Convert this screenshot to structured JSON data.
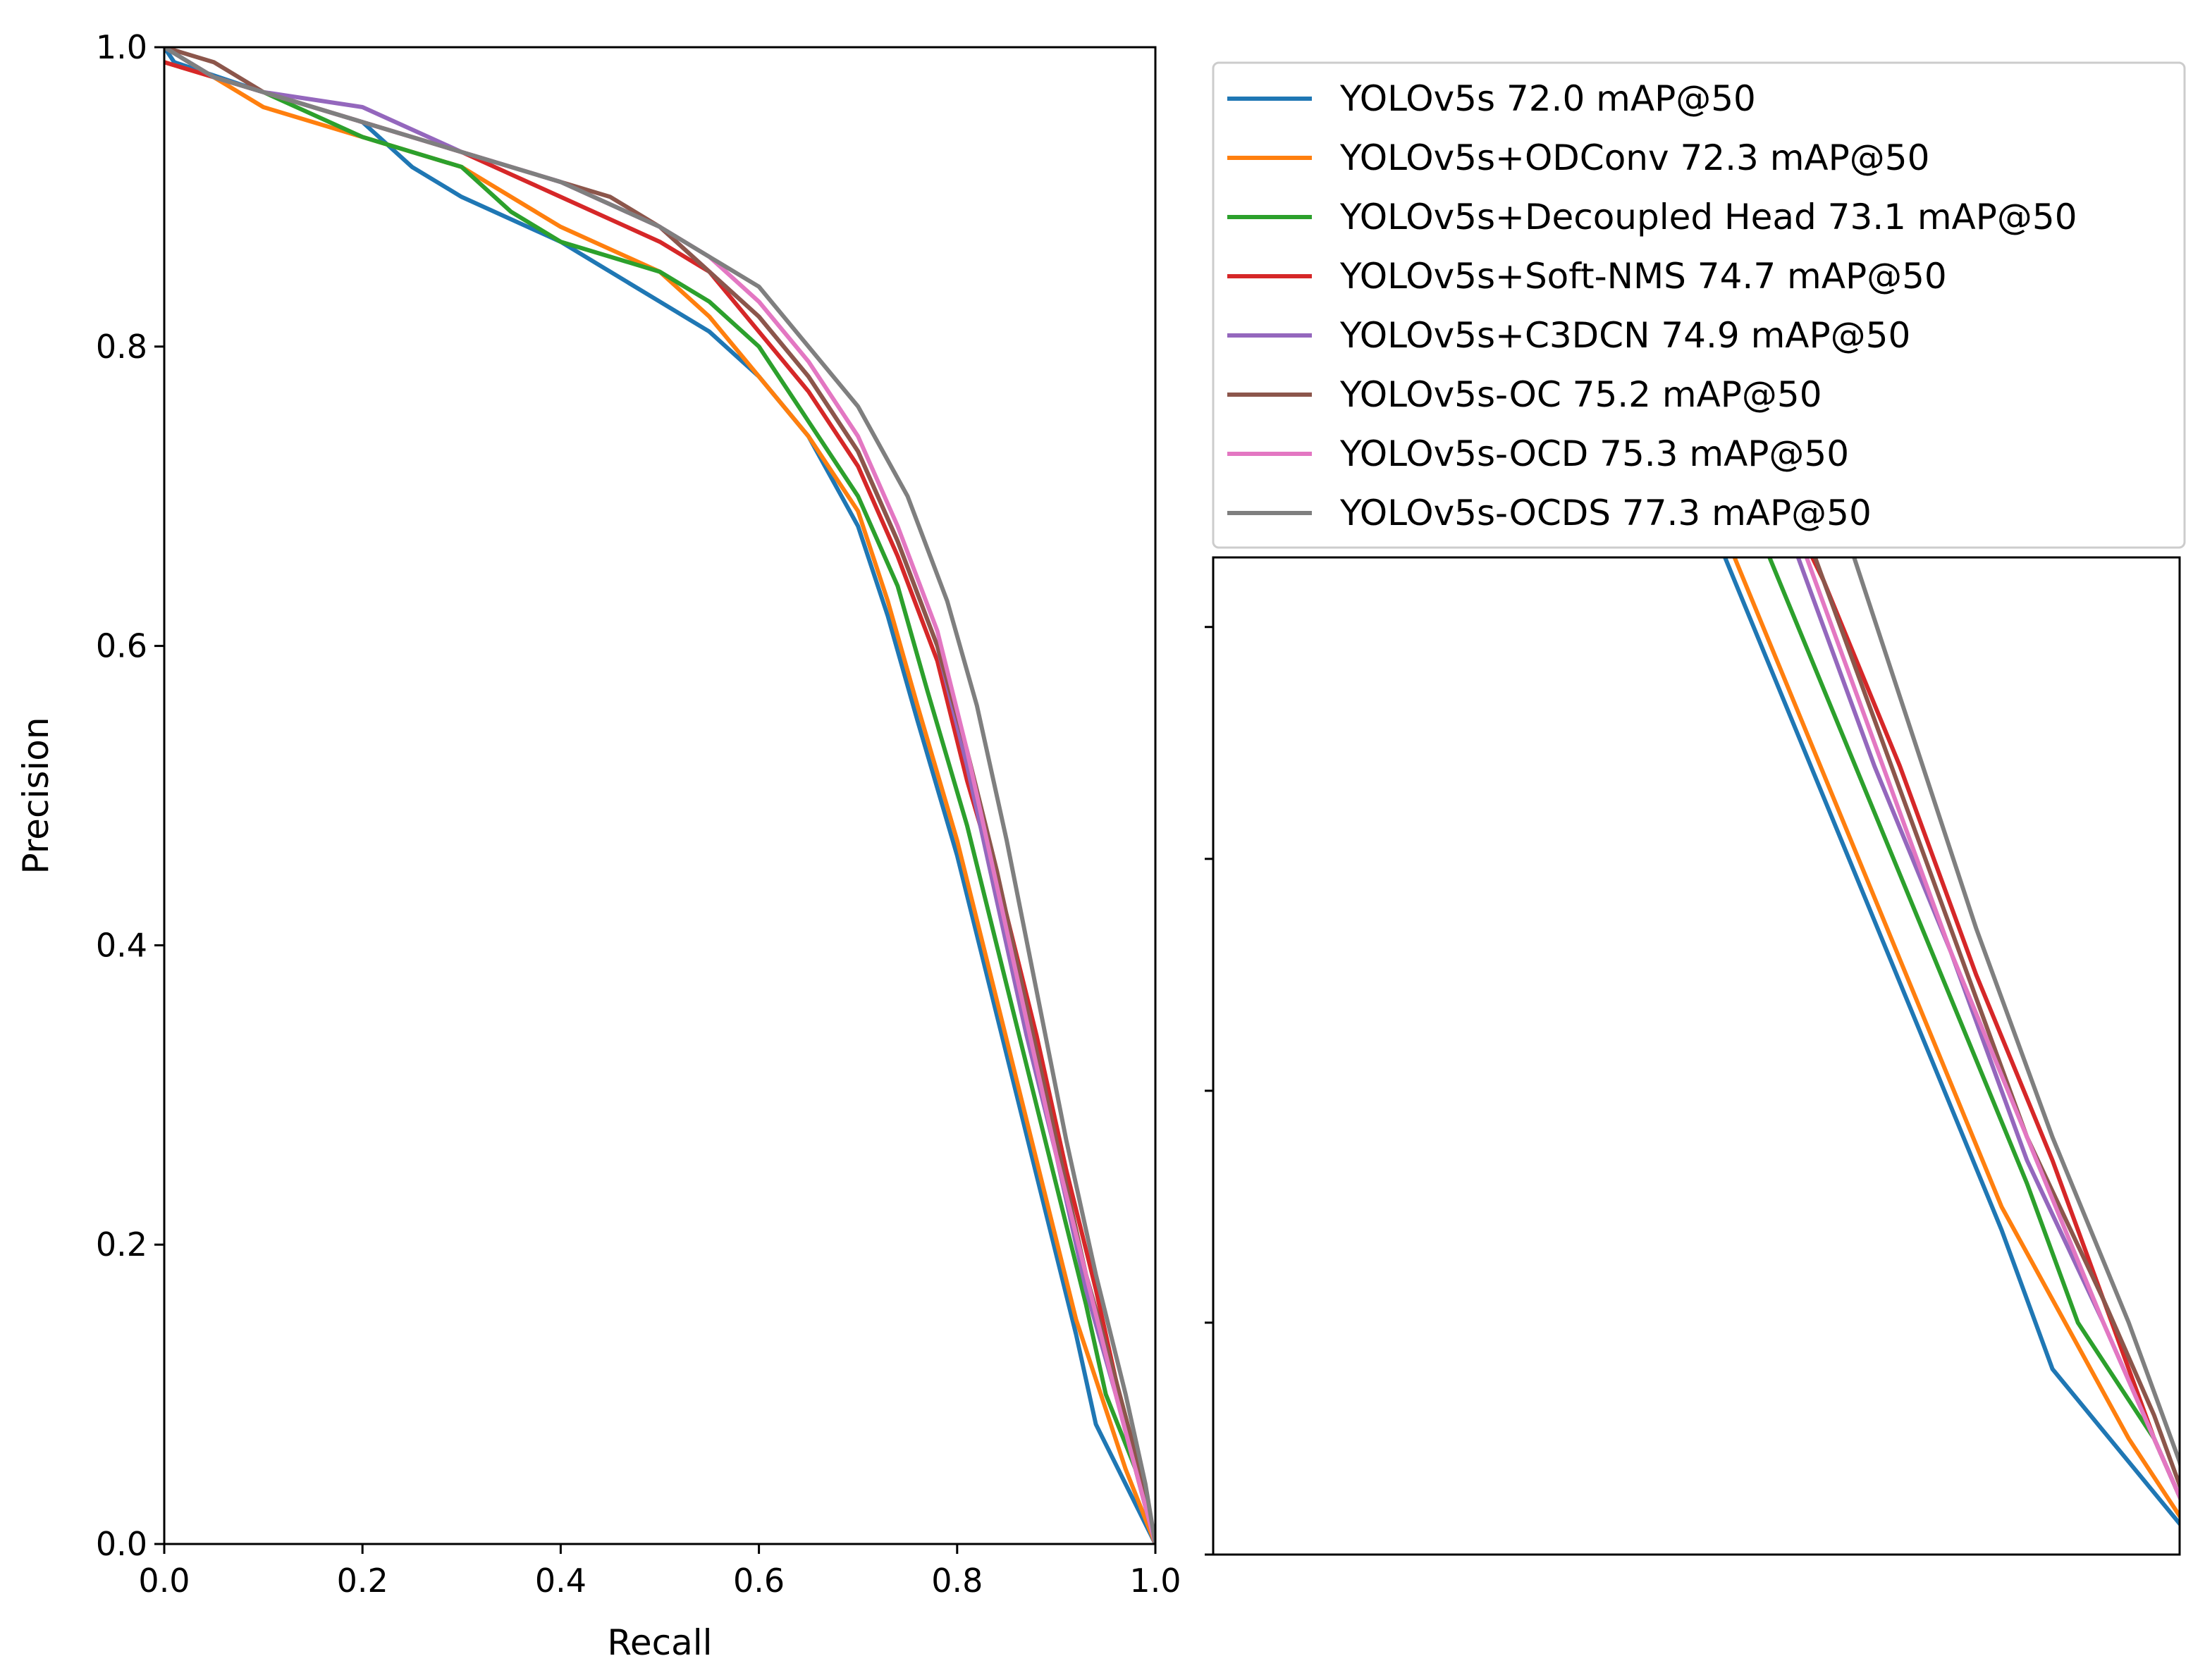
{
  "chart_data": [
    {
      "type": "line",
      "panel": "main",
      "title": "",
      "xlabel": "Recall",
      "ylabel": "Precision",
      "xlim": [
        0.0,
        1.0
      ],
      "ylim": [
        0.0,
        1.0
      ],
      "grid": false,
      "x_ticks": [
        "0.0",
        "0.2",
        "0.4",
        "0.6",
        "0.8",
        "1.0"
      ],
      "y_ticks": [
        "0.0",
        "0.2",
        "0.4",
        "0.6",
        "0.8",
        "1.0"
      ],
      "legend": {
        "placement": "top-right (outside plot)",
        "entries": [
          "YOLOv5s 72.0 mAP@50",
          "YOLOv5s+ODConv 72.3 mAP@50",
          "YOLOv5s+Decoupled Head 73.1 mAP@50",
          "YOLOv5s+Soft-NMS 74.7 mAP@50",
          "YOLOv5s+C3DCN 74.9 mAP@50",
          "YOLOv5s-OC 75.2 mAP@50",
          "YOLOv5s-OCD 75.3 mAP@50",
          "YOLOv5s-OCDS 77.3 mAP@50"
        ]
      },
      "series": [
        {
          "name": "YOLOv5s 72.0 mAP@50",
          "color": "#1f77b4",
          "points": [
            [
              0,
              1.0
            ],
            [
              0.01,
              0.99
            ],
            [
              0.1,
              0.97
            ],
            [
              0.2,
              0.95
            ],
            [
              0.25,
              0.92
            ],
            [
              0.3,
              0.9
            ],
            [
              0.4,
              0.87
            ],
            [
              0.45,
              0.85
            ],
            [
              0.5,
              0.83
            ],
            [
              0.55,
              0.81
            ],
            [
              0.6,
              0.78
            ],
            [
              0.65,
              0.74
            ],
            [
              0.7,
              0.68
            ],
            [
              0.73,
              0.62
            ],
            [
              0.76,
              0.55
            ],
            [
              0.8,
              0.46
            ],
            [
              0.83,
              0.38
            ],
            [
              0.86,
              0.3
            ],
            [
              0.89,
              0.22
            ],
            [
              0.92,
              0.14
            ],
            [
              0.94,
              0.08
            ],
            [
              0.97,
              0.04
            ],
            [
              1.0,
              0.0
            ]
          ]
        },
        {
          "name": "YOLOv5s+ODConv 72.3 mAP@50",
          "color": "#ff7f0e",
          "points": [
            [
              0,
              0.99
            ],
            [
              0.05,
              0.98
            ],
            [
              0.1,
              0.96
            ],
            [
              0.2,
              0.94
            ],
            [
              0.3,
              0.92
            ],
            [
              0.4,
              0.88
            ],
            [
              0.5,
              0.85
            ],
            [
              0.55,
              0.82
            ],
            [
              0.6,
              0.78
            ],
            [
              0.65,
              0.74
            ],
            [
              0.7,
              0.69
            ],
            [
              0.73,
              0.63
            ],
            [
              0.76,
              0.56
            ],
            [
              0.8,
              0.47
            ],
            [
              0.83,
              0.39
            ],
            [
              0.86,
              0.31
            ],
            [
              0.89,
              0.23
            ],
            [
              0.92,
              0.15
            ],
            [
              0.95,
              0.09
            ],
            [
              0.97,
              0.05
            ],
            [
              1.0,
              0.0
            ]
          ]
        },
        {
          "name": "YOLOv5s+Decoupled Head 73.1 mAP@50",
          "color": "#2ca02c",
          "points": [
            [
              0,
              1.0
            ],
            [
              0.05,
              0.98
            ],
            [
              0.1,
              0.97
            ],
            [
              0.2,
              0.94
            ],
            [
              0.3,
              0.92
            ],
            [
              0.35,
              0.89
            ],
            [
              0.4,
              0.87
            ],
            [
              0.5,
              0.85
            ],
            [
              0.55,
              0.83
            ],
            [
              0.6,
              0.8
            ],
            [
              0.65,
              0.75
            ],
            [
              0.7,
              0.7
            ],
            [
              0.74,
              0.64
            ],
            [
              0.77,
              0.57
            ],
            [
              0.81,
              0.48
            ],
            [
              0.84,
              0.4
            ],
            [
              0.87,
              0.32
            ],
            [
              0.9,
              0.24
            ],
            [
              0.93,
              0.16
            ],
            [
              0.95,
              0.1
            ],
            [
              0.98,
              0.05
            ],
            [
              1.0,
              0.0
            ]
          ]
        },
        {
          "name": "YOLOv5s+Soft-NMS 74.7 mAP@50",
          "color": "#d62728",
          "points": [
            [
              0,
              0.99
            ],
            [
              0.05,
              0.98
            ],
            [
              0.1,
              0.97
            ],
            [
              0.2,
              0.95
            ],
            [
              0.3,
              0.93
            ],
            [
              0.4,
              0.9
            ],
            [
              0.5,
              0.87
            ],
            [
              0.55,
              0.85
            ],
            [
              0.6,
              0.81
            ],
            [
              0.65,
              0.77
            ],
            [
              0.7,
              0.72
            ],
            [
              0.74,
              0.66
            ],
            [
              0.78,
              0.59
            ],
            [
              0.81,
              0.51
            ],
            [
              0.85,
              0.42
            ],
            [
              0.88,
              0.34
            ],
            [
              0.91,
              0.25
            ],
            [
              0.94,
              0.17
            ],
            [
              0.96,
              0.11
            ],
            [
              0.98,
              0.05
            ],
            [
              1.0,
              0.0
            ]
          ]
        },
        {
          "name": "YOLOv5s+C3DCN 74.9 mAP@50",
          "color": "#9467bd",
          "points": [
            [
              0,
              1.0
            ],
            [
              0.05,
              0.98
            ],
            [
              0.1,
              0.97
            ],
            [
              0.2,
              0.96
            ],
            [
              0.3,
              0.93
            ],
            [
              0.4,
              0.91
            ],
            [
              0.5,
              0.88
            ],
            [
              0.55,
              0.85
            ],
            [
              0.6,
              0.82
            ],
            [
              0.65,
              0.78
            ],
            [
              0.7,
              0.73
            ],
            [
              0.74,
              0.67
            ],
            [
              0.78,
              0.6
            ],
            [
              0.81,
              0.52
            ],
            [
              0.84,
              0.43
            ],
            [
              0.87,
              0.34
            ],
            [
              0.9,
              0.26
            ],
            [
              0.93,
              0.17
            ],
            [
              0.96,
              0.1
            ],
            [
              0.98,
              0.05
            ],
            [
              1.0,
              0.0
            ]
          ]
        },
        {
          "name": "YOLOv5s-OC 75.2 mAP@50",
          "color": "#8c564b",
          "points": [
            [
              0,
              1.0
            ],
            [
              0.05,
              0.99
            ],
            [
              0.1,
              0.97
            ],
            [
              0.2,
              0.95
            ],
            [
              0.3,
              0.93
            ],
            [
              0.4,
              0.91
            ],
            [
              0.45,
              0.9
            ],
            [
              0.5,
              0.88
            ],
            [
              0.55,
              0.85
            ],
            [
              0.6,
              0.82
            ],
            [
              0.65,
              0.78
            ],
            [
              0.7,
              0.73
            ],
            [
              0.74,
              0.67
            ],
            [
              0.78,
              0.6
            ],
            [
              0.81,
              0.53
            ],
            [
              0.84,
              0.45
            ],
            [
              0.87,
              0.36
            ],
            [
              0.9,
              0.27
            ],
            [
              0.93,
              0.18
            ],
            [
              0.96,
              0.11
            ],
            [
              0.98,
              0.06
            ],
            [
              1.0,
              0.0
            ]
          ]
        },
        {
          "name": "YOLOv5s-OCD 75.3 mAP@50",
          "color": "#e377c2",
          "points": [
            [
              0,
              1.0
            ],
            [
              0.05,
              0.98
            ],
            [
              0.1,
              0.97
            ],
            [
              0.2,
              0.95
            ],
            [
              0.3,
              0.93
            ],
            [
              0.4,
              0.91
            ],
            [
              0.5,
              0.88
            ],
            [
              0.55,
              0.86
            ],
            [
              0.6,
              0.83
            ],
            [
              0.65,
              0.79
            ],
            [
              0.7,
              0.74
            ],
            [
              0.74,
              0.68
            ],
            [
              0.78,
              0.61
            ],
            [
              0.81,
              0.53
            ],
            [
              0.84,
              0.44
            ],
            [
              0.87,
              0.35
            ],
            [
              0.9,
              0.26
            ],
            [
              0.93,
              0.18
            ],
            [
              0.96,
              0.1
            ],
            [
              0.98,
              0.05
            ],
            [
              1.0,
              0.0
            ]
          ]
        },
        {
          "name": "YOLOv5s-OCDS 77.3 mAP@50",
          "color": "#7f7f7f",
          "points": [
            [
              0,
              1.0
            ],
            [
              0.05,
              0.98
            ],
            [
              0.1,
              0.97
            ],
            [
              0.2,
              0.95
            ],
            [
              0.3,
              0.93
            ],
            [
              0.4,
              0.91
            ],
            [
              0.5,
              0.88
            ],
            [
              0.55,
              0.86
            ],
            [
              0.6,
              0.84
            ],
            [
              0.65,
              0.8
            ],
            [
              0.7,
              0.76
            ],
            [
              0.75,
              0.7
            ],
            [
              0.79,
              0.63
            ],
            [
              0.82,
              0.56
            ],
            [
              0.85,
              0.47
            ],
            [
              0.88,
              0.37
            ],
            [
              0.91,
              0.27
            ],
            [
              0.94,
              0.18
            ],
            [
              0.97,
              0.1
            ],
            [
              0.99,
              0.04
            ],
            [
              1.0,
              0.0
            ]
          ]
        }
      ]
    },
    {
      "type": "line",
      "panel": "zoom-inset",
      "title": "",
      "xlabel": "",
      "ylabel": "",
      "xlim": [
        0.61,
        0.99
      ],
      "ylim": [
        0.0,
        0.43
      ],
      "grid": false,
      "series_ref": "same series as main panel (enlarged view)"
    }
  ]
}
